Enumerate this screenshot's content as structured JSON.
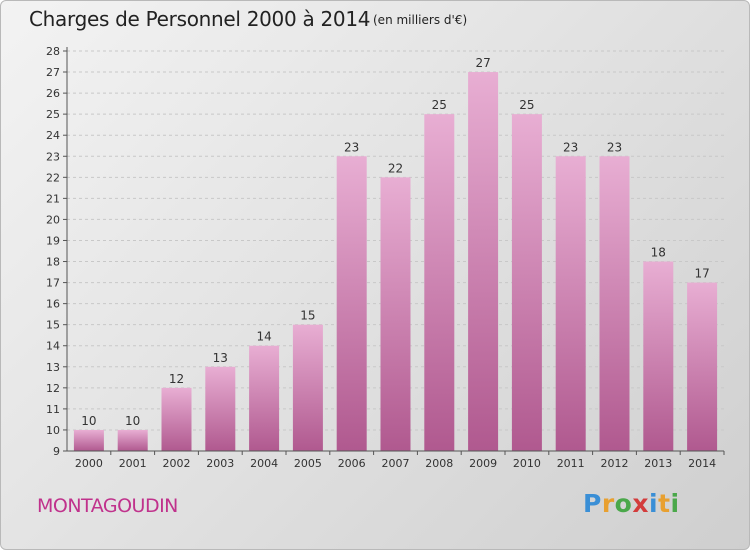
{
  "title": "Charges de Personnel 2000 à 2014",
  "unit_note": "(en milliers d'€)",
  "commune": "MONTAGOUDIN",
  "logo": {
    "letters": [
      "P",
      "r",
      "o",
      "x",
      "i",
      "t",
      "i"
    ],
    "colors": [
      "#3a8fd6",
      "#e8a030",
      "#4aa84a",
      "#d33c3c",
      "#3a8fd6",
      "#e8a030",
      "#4aa84a"
    ]
  },
  "colors": {
    "bar_top": "#e8aed3",
    "bar_bottom": "#b0598f",
    "commune": "#c0328c"
  },
  "chart_data": {
    "type": "bar",
    "title": "Charges de Personnel 2000 à 2014",
    "ylabel": "",
    "xlabel": "",
    "categories": [
      "2000",
      "2001",
      "2002",
      "2003",
      "2004",
      "2005",
      "2006",
      "2007",
      "2008",
      "2009",
      "2010",
      "2011",
      "2012",
      "2013",
      "2014"
    ],
    "values": [
      10,
      10,
      12,
      13,
      14,
      15,
      23,
      22,
      25,
      27,
      25,
      23,
      23,
      18,
      17
    ],
    "ylim": [
      9,
      28
    ],
    "yticks": [
      9,
      10,
      11,
      12,
      13,
      14,
      15,
      16,
      17,
      18,
      19,
      20,
      21,
      22,
      23,
      24,
      25,
      26,
      27,
      28
    ],
    "grid": true
  }
}
